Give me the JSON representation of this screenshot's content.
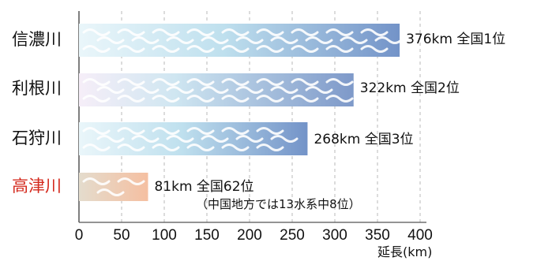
{
  "chart_data": {
    "type": "bar",
    "orientation": "horizontal",
    "categories": [
      "信濃川",
      "利根川",
      "石狩川",
      "高津川"
    ],
    "values": [
      376,
      322,
      268,
      81
    ],
    "data_labels": [
      "376km 全国1位",
      "322km  全国2位",
      "268km 全国3位",
      "81km 全国62位"
    ],
    "annotation": "（中国地方では13水系中8位）",
    "xlabel": "延長(km)",
    "x_ticks": [
      0,
      50,
      100,
      150,
      200,
      250,
      300,
      350,
      400
    ],
    "xlim": [
      0,
      400
    ],
    "grid": "vertical dashed",
    "highlight_category": "高津川",
    "colors": {
      "label_default": "#111111",
      "label_highlight": "#d42a1e",
      "bar_blue_light": "#dff1f8",
      "bar_blue_dark": "#7393c8",
      "bar_tan_light": "#e9dfcf",
      "bar_tan_dark": "#f3bfa2",
      "grid": "#b9b9b9",
      "wave": "#ffffff"
    }
  }
}
